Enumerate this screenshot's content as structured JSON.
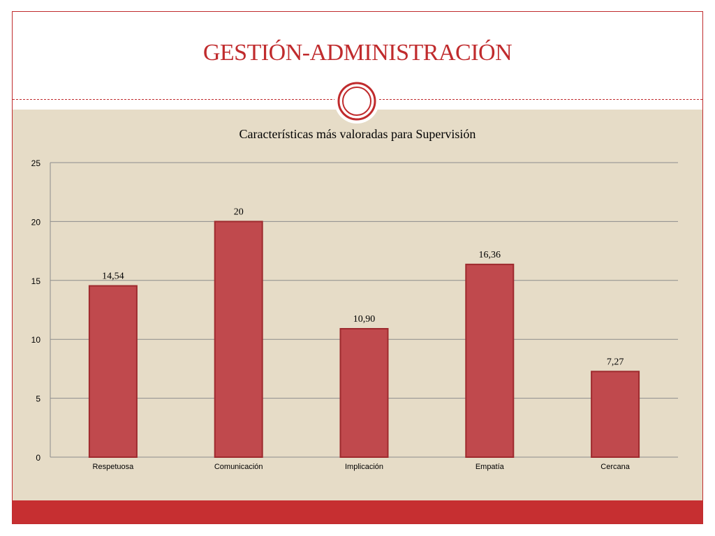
{
  "slide": {
    "title": "GESTIÓN-ADMINISTRACIÓN",
    "accent_color": "#c02b2d",
    "background_color": "#e6dcc7",
    "footer_color": "#c62f31"
  },
  "chart_data": {
    "type": "bar",
    "title": "Características más valoradas para Supervisión",
    "categories": [
      "Respetuosa",
      "Comunicación",
      "Implicación",
      "Empatía",
      "Cercana"
    ],
    "values": [
      14.54,
      20,
      10.9,
      16.36,
      7.27
    ],
    "data_labels": [
      "14,54",
      "20",
      "10,90",
      "16,36",
      "7,27"
    ],
    "ylim": [
      0,
      25
    ],
    "yticks": [
      0,
      5,
      10,
      15,
      20,
      25
    ],
    "xlabel": "",
    "ylabel": "",
    "grid": true,
    "legend": "none",
    "bar_color": "#c0494d"
  }
}
